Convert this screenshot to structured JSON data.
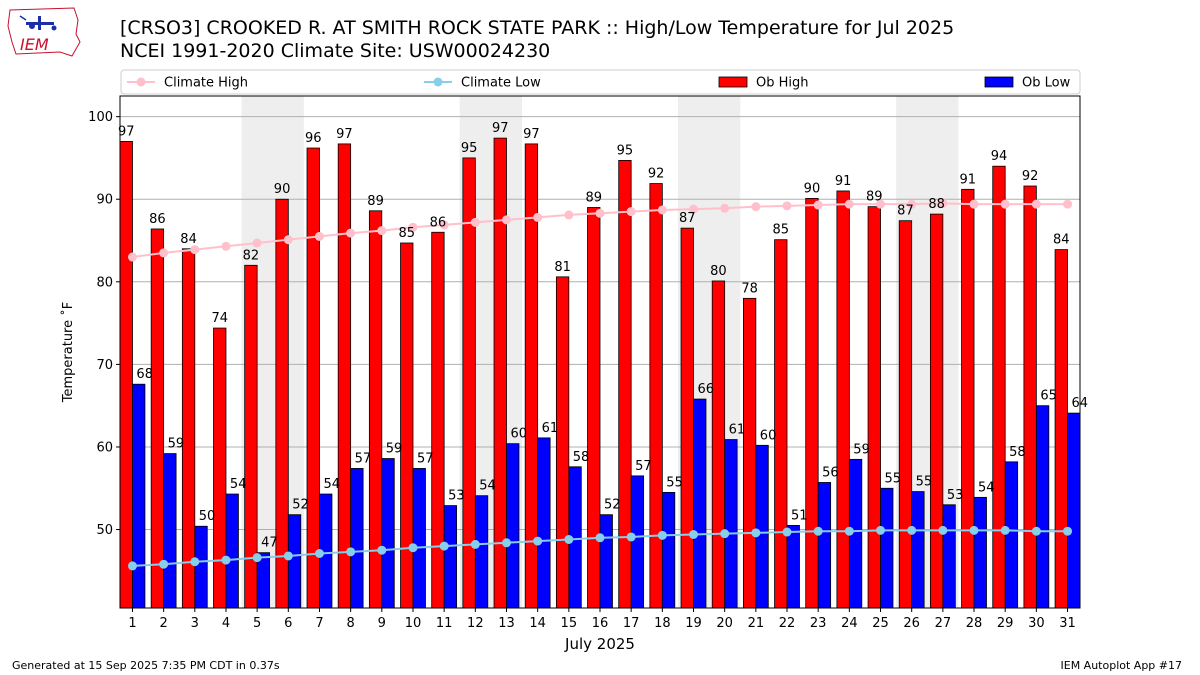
{
  "header": {
    "title_line1": "[CRSO3] CROOKED R. AT SMITH ROCK STATE PARK :: High/Low Temperature for Jul 2025",
    "title_line2": "NCEI 1991-2020 Climate Site: USW00024230",
    "logo_text": "IEM"
  },
  "footer": {
    "generated": "Generated at 15 Sep 2025 7:35 PM CDT in 0.37s",
    "app": "IEM Autoplot App #17"
  },
  "colors": {
    "ob_high": "#ff0000",
    "ob_low": "#0000ff",
    "climate_high": "#ffc0cb",
    "climate_low": "#87ceeb",
    "weekend_band": "#eeeeee",
    "grid": "#b0b0b0"
  },
  "chart_data": {
    "type": "bar",
    "xlabel": "July 2025",
    "ylabel": "Temperature ˚F",
    "ylim": [
      40.5,
      102.5
    ],
    "yticks": [
      50,
      60,
      70,
      80,
      90,
      100
    ],
    "grid": "horizontal",
    "legend_position": "top",
    "weekend_bands": [
      [
        5,
        6
      ],
      [
        12,
        13
      ],
      [
        19,
        20
      ],
      [
        26,
        27
      ]
    ],
    "categories": [
      "1",
      "2",
      "3",
      "4",
      "5",
      "6",
      "7",
      "8",
      "9",
      "10",
      "11",
      "12",
      "13",
      "14",
      "15",
      "16",
      "17",
      "18",
      "19",
      "20",
      "21",
      "22",
      "23",
      "24",
      "25",
      "26",
      "27",
      "28",
      "29",
      "30",
      "31"
    ],
    "legend": [
      "Climate High",
      "Climate Low",
      "Ob High",
      "Ob Low"
    ],
    "series": [
      {
        "name": "Ob High",
        "kind": "bar",
        "labels": [
          "97",
          "86",
          "84",
          "74",
          "82",
          "90",
          "96",
          "97",
          "89",
          "85",
          "86",
          "95",
          "97",
          "97",
          "81",
          "89",
          "95",
          "92",
          "87",
          "80",
          "78",
          "85",
          "90",
          "91",
          "89",
          "87",
          "88",
          "91",
          "94",
          "92",
          "84"
        ],
        "values": [
          97.0,
          86.4,
          84.0,
          74.4,
          82.0,
          90.0,
          96.2,
          96.7,
          88.6,
          84.7,
          86.0,
          95.0,
          97.4,
          96.7,
          80.6,
          89.0,
          94.7,
          91.9,
          86.5,
          80.1,
          78.0,
          85.1,
          90.1,
          91.0,
          89.1,
          87.4,
          88.2,
          91.2,
          94.0,
          91.6,
          83.9
        ]
      },
      {
        "name": "Ob Low",
        "kind": "bar",
        "labels": [
          "68",
          "59",
          "50",
          "54",
          "47",
          "52",
          "54",
          "57",
          "59",
          "57",
          "53",
          "54",
          "60",
          "61",
          "58",
          "52",
          "57",
          "55",
          "66",
          "61",
          "60",
          "51",
          "56",
          "59",
          "55",
          "55",
          "53",
          "54",
          "58",
          "65",
          "64"
        ],
        "values": [
          67.6,
          59.2,
          50.4,
          54.3,
          47.2,
          51.8,
          54.3,
          57.4,
          58.6,
          57.4,
          52.9,
          54.1,
          60.4,
          61.1,
          57.6,
          51.8,
          56.5,
          54.5,
          65.8,
          60.9,
          60.2,
          50.5,
          55.7,
          58.5,
          55.0,
          54.6,
          53.0,
          53.9,
          58.2,
          65.0,
          64.1
        ]
      },
      {
        "name": "Climate High",
        "kind": "line",
        "values": [
          83.0,
          83.5,
          83.9,
          84.3,
          84.7,
          85.1,
          85.5,
          85.9,
          86.2,
          86.6,
          86.9,
          87.2,
          87.5,
          87.8,
          88.1,
          88.3,
          88.5,
          88.7,
          88.8,
          88.9,
          89.1,
          89.2,
          89.3,
          89.4,
          89.4,
          89.4,
          89.5,
          89.4,
          89.4,
          89.4,
          89.4
        ]
      },
      {
        "name": "Climate Low",
        "kind": "line",
        "values": [
          45.6,
          45.8,
          46.1,
          46.3,
          46.6,
          46.8,
          47.1,
          47.3,
          47.5,
          47.8,
          48.0,
          48.2,
          48.4,
          48.6,
          48.8,
          49.0,
          49.1,
          49.3,
          49.4,
          49.5,
          49.6,
          49.7,
          49.8,
          49.8,
          49.9,
          49.9,
          49.9,
          49.9,
          49.9,
          49.8,
          49.8
        ]
      }
    ]
  }
}
